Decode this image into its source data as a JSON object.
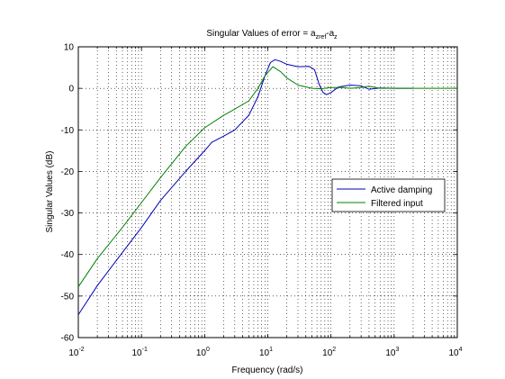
{
  "chart_data": {
    "type": "line",
    "title": {
      "prefix": "Singular Values of error = a",
      "sub1": "zref",
      "mid": "-a",
      "sub2": "z"
    },
    "xlabel": "Frequency (rad/s)",
    "ylabel": "Singular Values (dB)",
    "xscale": "log",
    "xlim": [
      0.01,
      10000
    ],
    "ylim": [
      -60,
      10
    ],
    "grid": "dotted on log decades (x)",
    "x_ticks": [
      {
        "base": "10",
        "exp": "-2",
        "value": 0.01
      },
      {
        "base": "10",
        "exp": "-1",
        "value": 0.1
      },
      {
        "base": "10",
        "exp": "0",
        "value": 1
      },
      {
        "base": "10",
        "exp": "1",
        "value": 10
      },
      {
        "base": "10",
        "exp": "2",
        "value": 100
      },
      {
        "base": "10",
        "exp": "3",
        "value": 1000
      },
      {
        "base": "10",
        "exp": "4",
        "value": 10000
      }
    ],
    "y_ticks": [
      "10",
      "0",
      "-10",
      "-20",
      "-30",
      "-40",
      "-50",
      "-60"
    ],
    "y_tick_values": [
      10,
      0,
      -10,
      -20,
      -30,
      -40,
      -50,
      -60
    ],
    "legend_position": "right",
    "series": [
      {
        "name": "Active damping",
        "color": "#0000b4",
        "x": [
          0.01,
          0.02,
          0.05,
          0.1,
          0.2,
          0.5,
          1,
          1.3,
          2,
          3,
          5,
          7,
          9,
          11,
          13,
          16,
          20,
          30,
          45,
          55,
          65,
          75,
          85,
          100,
          130,
          200,
          300,
          400,
          600,
          1000,
          2000
        ],
        "y": [
          -54.5,
          -47.5,
          -39.5,
          -33.5,
          -27,
          -20,
          -15,
          -13,
          -11.5,
          -10,
          -6.5,
          -2,
          3,
          6.2,
          6.9,
          6.5,
          5.8,
          5.2,
          5.3,
          4.5,
          1,
          -1,
          -1.5,
          -1,
          0.3,
          0.8,
          0.6,
          -0.2,
          0.1,
          0,
          0
        ]
      },
      {
        "name": "Filtered input",
        "color": "#008000",
        "x": [
          0.01,
          0.02,
          0.05,
          0.1,
          0.2,
          0.5,
          1,
          2,
          3,
          5,
          7,
          9,
          12,
          16,
          20,
          30,
          50,
          70,
          100,
          150,
          200,
          300,
          400,
          600,
          1000,
          10000
        ],
        "y": [
          -47.8,
          -41,
          -33.5,
          -27.5,
          -21.5,
          -14,
          -9.5,
          -6.5,
          -5,
          -3,
          0,
          3,
          5.2,
          4,
          2.5,
          0.8,
          0,
          -0.1,
          0.2,
          0.2,
          0,
          0.2,
          0.5,
          0,
          0,
          0
        ]
      }
    ]
  }
}
